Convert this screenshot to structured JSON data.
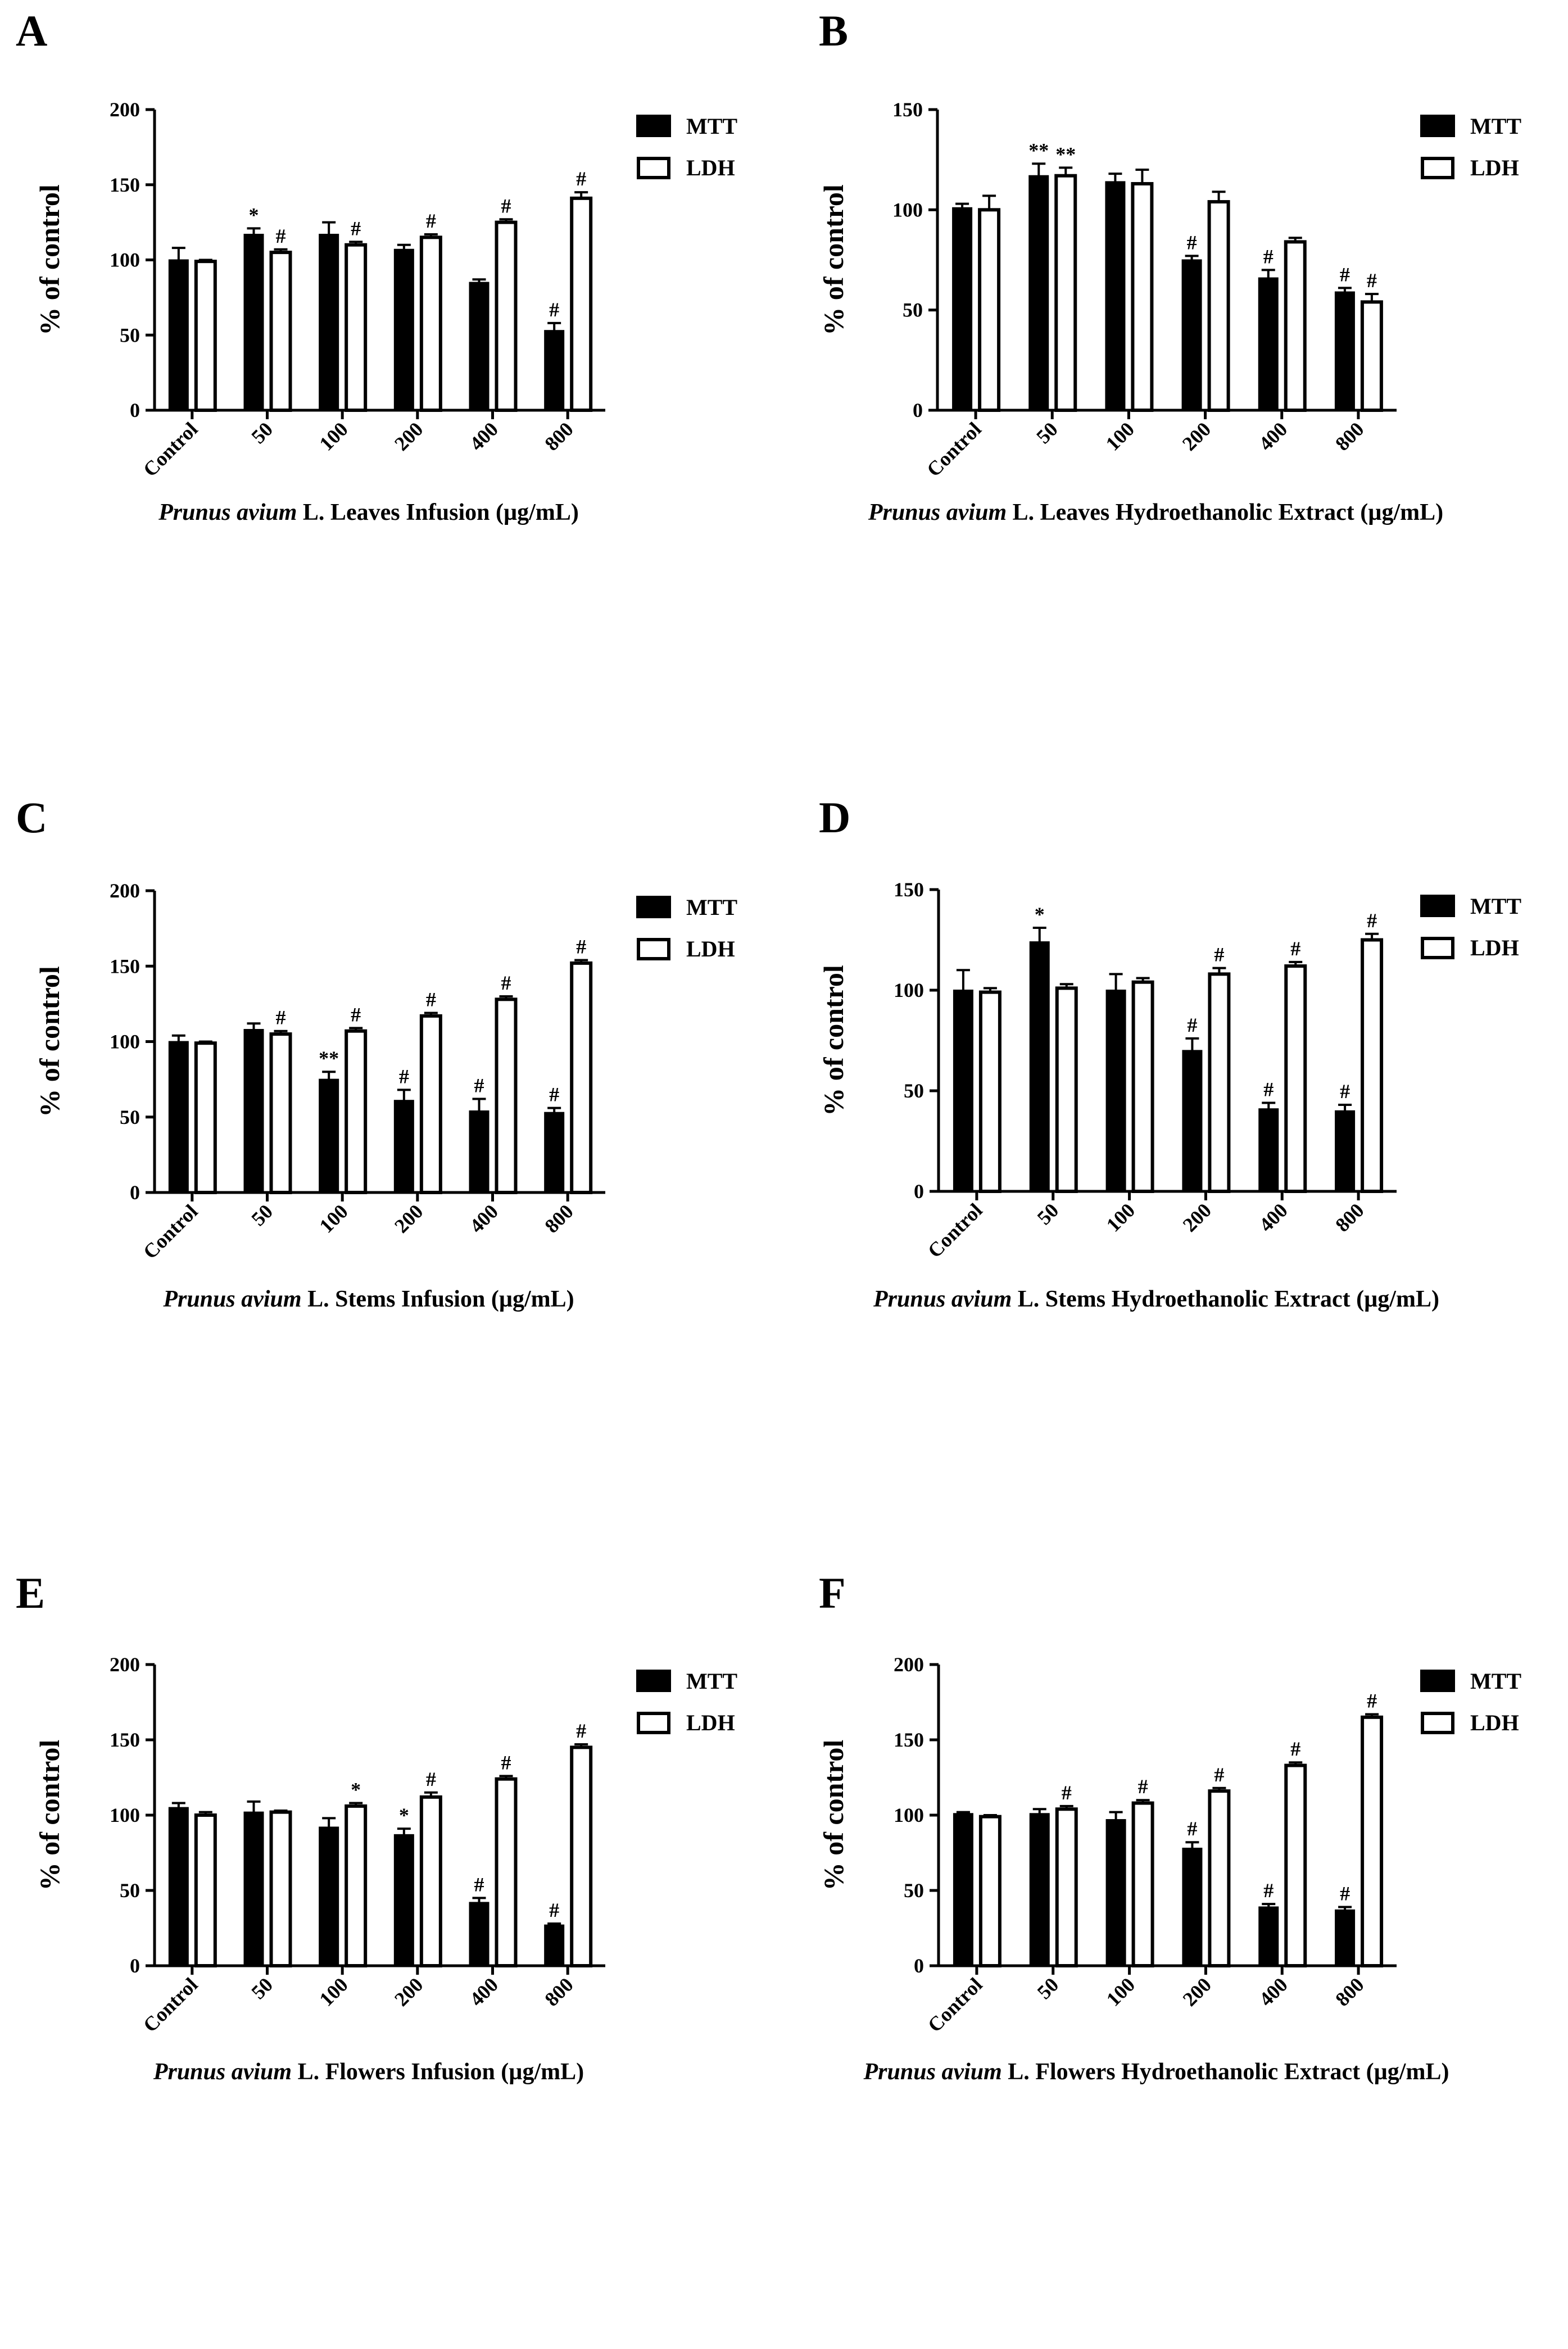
{
  "figure": {
    "legend": {
      "mtt": "MTT",
      "ldh": "LDH"
    },
    "ylabel": "% of control",
    "colors": {
      "mtt": "#000000",
      "ldh": "#ffffff",
      "axis": "#000000"
    }
  },
  "chart_data": [
    {
      "panel": "A",
      "type": "bar",
      "title_italic": "Prunus avium",
      "title_rest": " L. Leaves Infusion (µg/mL)",
      "ylabel": "% of control",
      "ylim": [
        0,
        200
      ],
      "yticks": [
        0,
        50,
        100,
        150,
        200
      ],
      "categories": [
        "Control",
        "50",
        "100",
        "200",
        "400",
        "800"
      ],
      "series": [
        {
          "name": "MTT",
          "values": [
            100,
            117,
            117,
            107,
            85,
            53
          ],
          "errors": [
            8,
            4,
            8,
            3,
            2,
            5
          ],
          "sig": [
            "",
            "*",
            "",
            "",
            "",
            "#"
          ]
        },
        {
          "name": "LDH",
          "values": [
            99,
            105,
            110,
            115,
            125,
            141
          ],
          "errors": [
            1,
            2,
            2,
            2,
            2,
            4
          ],
          "sig": [
            "",
            "#",
            "#",
            "#",
            "#",
            "#"
          ]
        }
      ]
    },
    {
      "panel": "B",
      "type": "bar",
      "title_italic": "Prunus avium",
      "title_rest": " L. Leaves Hydroethanolic Extract (µg/mL)",
      "ylabel": "% of control",
      "ylim": [
        0,
        150
      ],
      "yticks": [
        0,
        50,
        100,
        150
      ],
      "categories": [
        "Control",
        "50",
        "100",
        "200",
        "400",
        "800"
      ],
      "series": [
        {
          "name": "MTT",
          "values": [
            101,
            117,
            114,
            75,
            66,
            59
          ],
          "errors": [
            2,
            6,
            4,
            2,
            4,
            2
          ],
          "sig": [
            "",
            "**",
            "",
            "#",
            "#",
            "#"
          ]
        },
        {
          "name": "LDH",
          "values": [
            100,
            117,
            113,
            104,
            84,
            54
          ],
          "errors": [
            7,
            4,
            7,
            5,
            2,
            4
          ],
          "sig": [
            "",
            "**",
            "",
            "",
            "",
            "#"
          ]
        }
      ]
    },
    {
      "panel": "C",
      "type": "bar",
      "title_italic": "Prunus avium",
      "title_rest": " L. Stems Infusion (µg/mL)",
      "ylabel": "% of control",
      "ylim": [
        0,
        200
      ],
      "yticks": [
        0,
        50,
        100,
        150,
        200
      ],
      "categories": [
        "Control",
        "50",
        "100",
        "200",
        "400",
        "800"
      ],
      "series": [
        {
          "name": "MTT",
          "values": [
            100,
            108,
            75,
            61,
            54,
            53
          ],
          "errors": [
            4,
            4,
            5,
            7,
            8,
            3
          ],
          "sig": [
            "",
            "",
            "**",
            "#",
            "#",
            "#"
          ]
        },
        {
          "name": "LDH",
          "values": [
            99,
            105,
            107,
            117,
            128,
            152
          ],
          "errors": [
            1,
            2,
            2,
            2,
            2,
            2
          ],
          "sig": [
            "",
            "#",
            "#",
            "#",
            "#",
            "#"
          ]
        }
      ]
    },
    {
      "panel": "D",
      "type": "bar",
      "title_italic": "Prunus avium",
      "title_rest": " L. Stems Hydroethanolic Extract (µg/mL)",
      "ylabel": "% of control",
      "ylim": [
        0,
        150
      ],
      "yticks": [
        0,
        50,
        100,
        150
      ],
      "categories": [
        "Control",
        "50",
        "100",
        "200",
        "400",
        "800"
      ],
      "series": [
        {
          "name": "MTT",
          "values": [
            100,
            124,
            100,
            70,
            41,
            40
          ],
          "errors": [
            10,
            7,
            8,
            6,
            3,
            3
          ],
          "sig": [
            "",
            "*",
            "",
            "#",
            "#",
            "#"
          ]
        },
        {
          "name": "LDH",
          "values": [
            99,
            101,
            104,
            108,
            112,
            125
          ],
          "errors": [
            2,
            2,
            2,
            3,
            2,
            3
          ],
          "sig": [
            "",
            "",
            "",
            "#",
            "#",
            "#"
          ]
        }
      ]
    },
    {
      "panel": "E",
      "type": "bar",
      "title_italic": "Prunus avium",
      "title_rest": " L. Flowers Infusion (µg/mL)",
      "ylabel": "% of control",
      "ylim": [
        0,
        200
      ],
      "yticks": [
        0,
        50,
        100,
        150,
        200
      ],
      "categories": [
        "Control",
        "50",
        "100",
        "200",
        "400",
        "800"
      ],
      "series": [
        {
          "name": "MTT",
          "values": [
            105,
            102,
            92,
            87,
            42,
            27
          ],
          "errors": [
            3,
            7,
            6,
            4,
            3,
            1
          ],
          "sig": [
            "",
            "",
            "",
            "*",
            "#",
            "#"
          ]
        },
        {
          "name": "LDH",
          "values": [
            100,
            102,
            106,
            112,
            124,
            145
          ],
          "errors": [
            2,
            1,
            2,
            3,
            2,
            2
          ],
          "sig": [
            "",
            "",
            "*",
            "#",
            "#",
            "#"
          ]
        }
      ]
    },
    {
      "panel": "F",
      "type": "bar",
      "title_italic": "Prunus avium",
      "title_rest": " L. Flowers Hydroethanolic Extract (µg/mL)",
      "ylabel": "% of control",
      "ylim": [
        0,
        200
      ],
      "yticks": [
        0,
        50,
        100,
        150,
        200
      ],
      "categories": [
        "Control",
        "50",
        "100",
        "200",
        "400",
        "800"
      ],
      "series": [
        {
          "name": "MTT",
          "values": [
            101,
            101,
            97,
            78,
            39,
            37
          ],
          "errors": [
            1,
            3,
            5,
            4,
            2,
            2
          ],
          "sig": [
            "",
            "",
            "",
            "#",
            "#",
            "#"
          ]
        },
        {
          "name": "LDH",
          "values": [
            99,
            104,
            108,
            116,
            133,
            165
          ],
          "errors": [
            1,
            2,
            2,
            2,
            2,
            2
          ],
          "sig": [
            "",
            "#",
            "#",
            "#",
            "#",
            "#"
          ]
        }
      ]
    }
  ]
}
